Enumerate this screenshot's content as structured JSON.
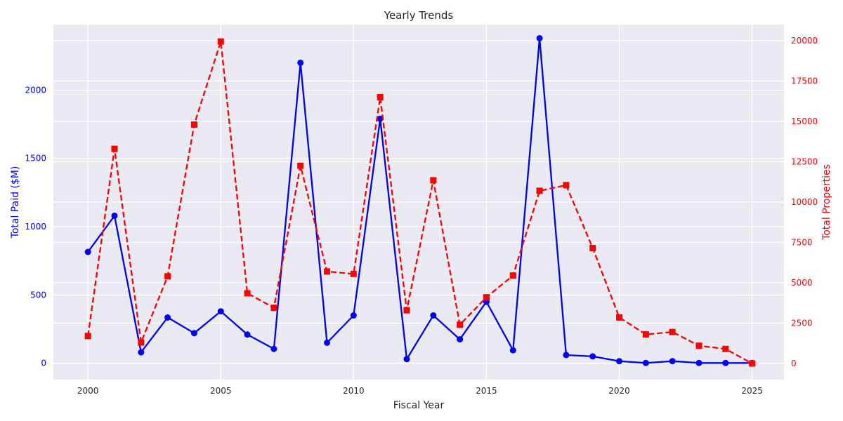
{
  "chart_data": {
    "type": "line",
    "title": "Yearly Trends",
    "xlabel": "Fiscal Year",
    "ylabel_left": "Total Paid ($M)",
    "ylabel_right": "Total Properties",
    "xlim": [
      1998.7,
      2026.2
    ],
    "ylim_left": [
      -120,
      2480
    ],
    "ylim_right": [
      -1000,
      21000
    ],
    "x_ticks": [
      2000,
      2005,
      2010,
      2015,
      2020,
      2025
    ],
    "y_ticks_left": [
      0,
      500,
      1000,
      1500,
      2000
    ],
    "y_ticks_right": [
      0,
      2500,
      5000,
      7500,
      10000,
      12500,
      15000,
      17500,
      20000
    ],
    "grid": true,
    "x": [
      2000,
      2001,
      2002,
      2003,
      2004,
      2005,
      2006,
      2007,
      2008,
      2009,
      2010,
      2011,
      2012,
      2013,
      2014,
      2015,
      2016,
      2017,
      2018,
      2019,
      2020,
      2021,
      2022,
      2023,
      2024,
      2025
    ],
    "series": [
      {
        "axis": "left",
        "color": "#0000ff",
        "marker": "circle",
        "linestyle": "solid",
        "values": [
          815,
          1080,
          80,
          335,
          220,
          380,
          210,
          105,
          2200,
          150,
          350,
          1790,
          30,
          350,
          175,
          450,
          95,
          2380,
          60,
          50,
          15,
          2,
          15,
          2,
          2,
          2
        ]
      },
      {
        "axis": "right",
        "color": "#ff0000",
        "marker": "square",
        "linestyle": "dashed",
        "values": [
          1700,
          13300,
          1300,
          5400,
          14800,
          19950,
          4350,
          3450,
          12250,
          5700,
          5550,
          16500,
          3300,
          11350,
          2400,
          4100,
          5450,
          10700,
          11050,
          7150,
          2850,
          1800,
          1950,
          1100,
          900,
          0
        ]
      }
    ]
  }
}
